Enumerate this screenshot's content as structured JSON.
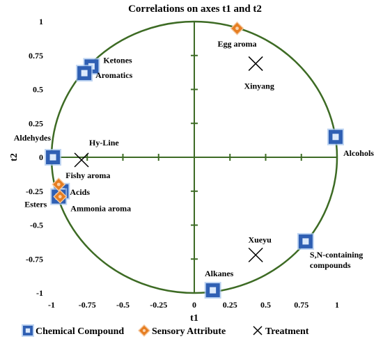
{
  "chart_data": {
    "type": "scatter",
    "title": "Correlations on axes t1 and t2",
    "xlabel": "t1",
    "ylabel": "t2",
    "xlim": [
      -1,
      1
    ],
    "ylim": [
      -1,
      1
    ],
    "xticks": [
      "-1",
      "-0.75",
      "-0.5",
      "-0.25",
      "0",
      "0.25",
      "0.5",
      "0.75",
      "1"
    ],
    "yticks": [
      "1",
      "0.75",
      "0.5",
      "0.25",
      "0",
      "-0.25",
      "-0.5",
      "-0.75",
      "-1"
    ],
    "circle_radius": 1,
    "grid": false,
    "legend_position": "bottom",
    "series": [
      {
        "name": "Chemical Compound",
        "marker": "blue-square",
        "color": "#2f5fb3",
        "points": [
          {
            "label": "Ketones",
            "x": -0.72,
            "y": 0.67
          },
          {
            "label": "Aromatics",
            "x": -0.77,
            "y": 0.62
          },
          {
            "label": "Aldehydes",
            "x": -0.99,
            "y": 0.0
          },
          {
            "label": "Alcohols",
            "x": 0.99,
            "y": 0.15
          },
          {
            "label": "Acids",
            "x": -0.93,
            "y": -0.25
          },
          {
            "label": "Esters",
            "x": -0.95,
            "y": -0.29
          },
          {
            "label": "S,N-containing compounds",
            "x": 0.78,
            "y": -0.62
          },
          {
            "label": "Alkanes",
            "x": 0.13,
            "y": -0.98
          }
        ]
      },
      {
        "name": "Sensory Attribute",
        "marker": "orange-diamond",
        "color": "#e67e22",
        "points": [
          {
            "label": "Egg aroma",
            "x": 0.3,
            "y": 0.95
          },
          {
            "label": "Fishy aroma",
            "x": -0.95,
            "y": -0.2
          },
          {
            "label": "Ammonia aroma",
            "x": -0.94,
            "y": -0.29
          }
        ]
      },
      {
        "name": "Treatment",
        "marker": "x-cross",
        "color": "#000000",
        "points": [
          {
            "label": "Xinyang",
            "x": 0.43,
            "y": 0.69
          },
          {
            "label": "Hy-Line",
            "x": -0.79,
            "y": -0.02
          },
          {
            "label": "Xueyu",
            "x": 0.43,
            "y": -0.72
          }
        ]
      }
    ]
  }
}
